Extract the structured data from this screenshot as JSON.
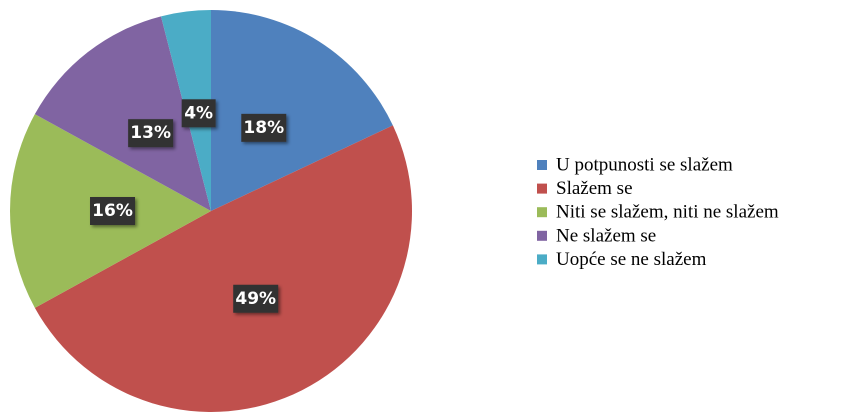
{
  "chart_data": {
    "type": "pie",
    "categories": [
      "U potpunosti se slažem",
      "Slažem se",
      "Niti se slažem, niti ne slažem",
      "Ne slažem se",
      "Uopće se ne slažem"
    ],
    "values": [
      18,
      49,
      16,
      13,
      4
    ],
    "value_labels": [
      "18%",
      "49%",
      "16%",
      "13%",
      "4%"
    ],
    "colors": [
      "#4f81bd",
      "#c0504d",
      "#9bbb59",
      "#8064a2",
      "#4bacc6"
    ],
    "legend": "right"
  }
}
